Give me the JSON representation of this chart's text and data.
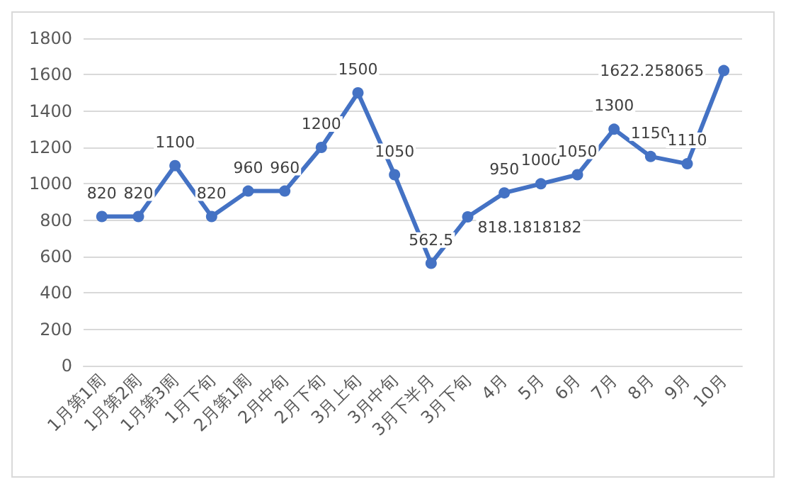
{
  "chart_data": {
    "type": "line",
    "categories": [
      "1月第1周",
      "1月第2周",
      "1月第3周",
      "1月下旬",
      "2月第1周",
      "2月中旬",
      "2月下旬",
      "3月上旬",
      "3月中旬",
      "3月下半月",
      "3月下旬",
      "4月",
      "5月",
      "6月",
      "7月",
      "8月",
      "9月",
      "10月"
    ],
    "series": [
      {
        "color": "#4472c4",
        "values": [
          820,
          820,
          1100,
          820,
          960,
          960,
          1200,
          1500,
          1050,
          562.5,
          818.1818182,
          950,
          1000,
          1050,
          1300,
          1150,
          1110,
          1622.258065
        ]
      }
    ],
    "ylim": [
      0,
      1800
    ],
    "yticks": [
      0,
      200,
      400,
      600,
      800,
      1000,
      1200,
      1400,
      1600,
      1800
    ],
    "grid": "y",
    "marker": "circle",
    "line_style": "solid",
    "data_labels": true
  }
}
